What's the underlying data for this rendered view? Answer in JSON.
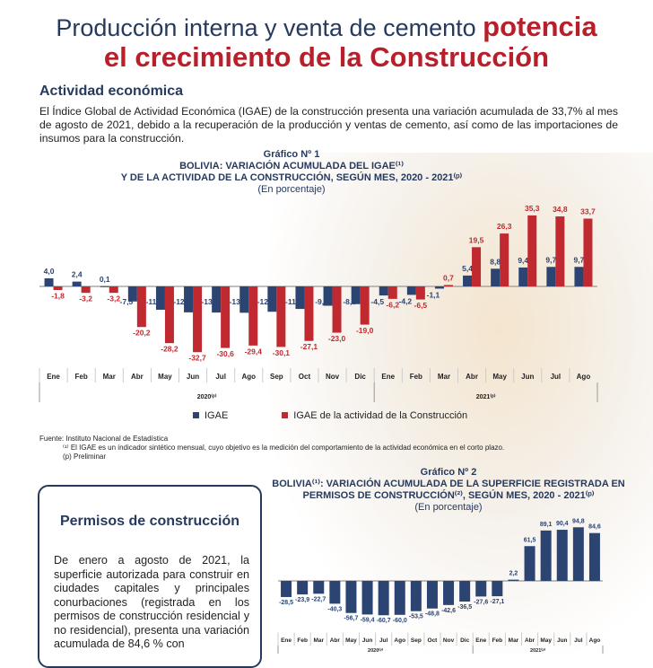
{
  "header": {
    "title_part1": "Producción interna y venta de cemento",
    "title_part2": "potencia",
    "title_line2": "el crecimiento de la Construcción"
  },
  "section": {
    "heading": "Actividad económica",
    "paragraph": "El Índice Global de Actividad Económica (IGAE) de la construcción presenta una variación acumulada de 33,7% al mes de agosto de 2021, debido a la recuperación de la producción y ventas de cemento, así como de las importaciones de insumos para la construcción."
  },
  "colors": {
    "navy": "#2b4472",
    "red": "#c0292f",
    "title": "#263a5e"
  },
  "chart_data": [
    {
      "type": "bar",
      "label": "Gráfico Nº 1",
      "title": "BOLIVIA: VARIACIÓN ACUMULADA DEL IGAE⁽¹⁾",
      "title2": "Y DE LA ACTIVIDAD DE LA CONSTRUCCIÓN, SEGÚN MES, 2020 - 2021⁽ᵖ⁾",
      "subtitle": "(En porcentaje)",
      "categories": [
        "Ene",
        "Feb",
        "Mar",
        "Abr",
        "May",
        "Jun",
        "Jul",
        "Ago",
        "Sep",
        "Oct",
        "Nov",
        "Dic",
        "Ene",
        "Feb",
        "Mar",
        "Abr",
        "May",
        "Jun",
        "Jul",
        "Ago"
      ],
      "groups": [
        {
          "label": "2020⁽ᵖ⁾",
          "count": 12
        },
        {
          "label": "2021⁽ᵖ⁾",
          "count": 8
        }
      ],
      "series": [
        {
          "name": "IGAE",
          "values": [
            4.0,
            2.4,
            0.1,
            -7.5,
            -11.6,
            -12.9,
            -13.0,
            -13.1,
            -12.6,
            -11.2,
            -9.6,
            -8.8,
            -4.5,
            -4.2,
            -1.1,
            5.4,
            8.8,
            9.4,
            9.7,
            9.7
          ]
        },
        {
          "name": "IGAE de la actividad de la  Construcción",
          "values": [
            -1.8,
            -3.2,
            -3.2,
            -20.2,
            -28.2,
            -32.7,
            -30.6,
            -29.4,
            -30.1,
            -27.1,
            -23.0,
            -19.0,
            -6.2,
            -6.5,
            0.7,
            19.5,
            26.3,
            35.3,
            34.8,
            33.7
          ]
        }
      ],
      "ylim": [
        -35,
        37
      ],
      "legend": "bottom"
    },
    {
      "type": "bar",
      "label": "Gráfico Nº 2",
      "title": "BOLIVIA⁽¹⁾: VARIACIÓN ACUMULADA DE LA SUPERFICIE REGISTRADA EN",
      "title2": "PERMISOS DE CONSTRUCCIÓN⁽²⁾, SEGÚN MES, 2020 - 2021⁽ᵖ⁾",
      "subtitle": "(En porcentaje)",
      "categories": [
        "Ene",
        "Feb",
        "Mar",
        "Abr",
        "May",
        "Jun",
        "Jul",
        "Ago",
        "Sep",
        "Oct",
        "Nov",
        "Dic",
        "Ene",
        "Feb",
        "Mar",
        "Abr",
        "May",
        "Jun",
        "Jul",
        "Ago"
      ],
      "groups": [
        {
          "label": "2020⁽ᵖ⁾",
          "count": 12
        },
        {
          "label": "2021⁽ᵖ⁾",
          "count": 8
        }
      ],
      "series": [
        {
          "name": "Superficie",
          "values": [
            -28.5,
            -23.9,
            -22.7,
            -40.3,
            -56.7,
            -59.4,
            -60.7,
            -60.0,
            -53.5,
            -48.8,
            -42.6,
            -36.5,
            -27.6,
            -27.1,
            2.2,
            61.5,
            89.1,
            90.4,
            94.8,
            84.6
          ]
        }
      ],
      "ylim": [
        -65,
        100
      ]
    }
  ],
  "footnotes": {
    "source": "Fuente: Instituto Nacional de Estadística",
    "note1": "⁽¹⁾ El IGAE es un indicador sintético mensual, cuyo objetivo es la medición del comportamiento de la actividad económica en el corto plazo.",
    "note2": "(p) Preliminar"
  },
  "box": {
    "heading": "Permisos de construcción",
    "paragraph": "De enero a agosto de 2021, la superficie autorizada para construir en ciudades capitales y principales conurbaciones (registrada en los permisos de construcción residencial y no residencial), presenta una variación acumulada de 84,6 % con"
  }
}
